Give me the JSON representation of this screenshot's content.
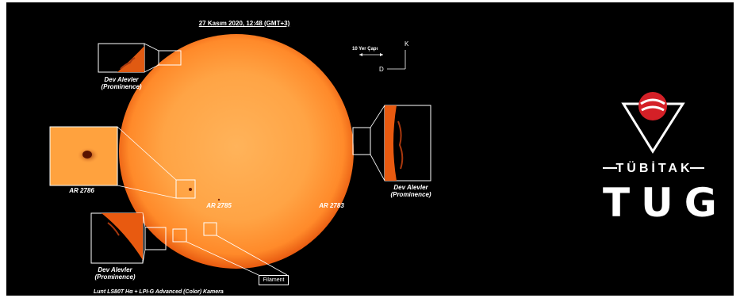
{
  "image": {
    "title": "27 Kasım 2020, 12:48 (GMT+3)",
    "scale_label": "10 Yer Çapı",
    "compass": {
      "north": "K",
      "east": "D"
    },
    "labels": {
      "prominence_top": [
        "Dev Alevler",
        "(Prominence)"
      ],
      "prominence_right": [
        "Dev Alevler",
        "(Prominence)"
      ],
      "prominence_bottom": [
        "Dev Alevler",
        "(Prominence)"
      ],
      "ar_2786": "AR 2786",
      "ar_2785": "AR 2785",
      "ar_2783": "AR 2783",
      "filament": "Filament"
    },
    "caption": "Lunt LS80T Hα + LPI-G Advanced (Color) Kamera",
    "colors": {
      "sun_core": "#ffa94a",
      "sun_limb": "#e85a10",
      "background": "#000000",
      "logo_red": "#d42027"
    }
  },
  "logo": {
    "name": "TÜBİTAK",
    "acronym": "TUG"
  }
}
